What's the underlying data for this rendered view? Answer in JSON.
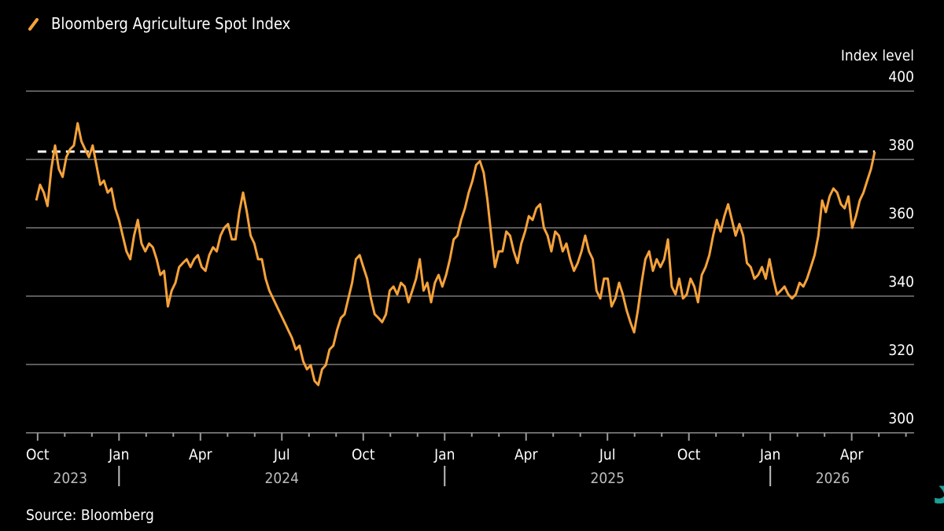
{
  "chart_data": {
    "type": "line",
    "title": "Bloomberg Agriculture Spot Index",
    "ylabel": "Index level",
    "xlabel": "",
    "source": "Source: Bloomberg",
    "ylim": [
      300,
      400
    ],
    "yticks": [
      400,
      380,
      360,
      340,
      320,
      300
    ],
    "x_unit": "months since Oct 2023",
    "xlim": [
      -0.43,
      32.3
    ],
    "xticks": [
      {
        "m": 0,
        "label": "Oct"
      },
      {
        "m": 3,
        "label": "Jan"
      },
      {
        "m": 6,
        "label": "Apr"
      },
      {
        "m": 9,
        "label": "Jul"
      },
      {
        "m": 12,
        "label": "Oct"
      },
      {
        "m": 15,
        "label": "Jan"
      },
      {
        "m": 18,
        "label": "Apr"
      },
      {
        "m": 21,
        "label": "Jul"
      },
      {
        "m": 24,
        "label": "Oct"
      },
      {
        "m": 27,
        "label": "Jan"
      },
      {
        "m": 30,
        "label": "Apr"
      }
    ],
    "year_labels": [
      {
        "m": 1.2,
        "label": "2023"
      },
      {
        "m": 9,
        "label": "2024"
      },
      {
        "m": 21,
        "label": "2025"
      },
      {
        "m": 29.3,
        "label": "2026"
      }
    ],
    "year_separators": [
      3,
      15,
      27
    ],
    "reference_line": {
      "value": 382.3,
      "style": "dashed"
    },
    "series": [
      {
        "name": "Bloomberg Agriculture Spot Index",
        "color": "#f5a23a",
        "x_start": -0.05,
        "x_end": 30.85,
        "values": [
          368.0,
          372.6,
          370.3,
          366.4,
          377.2,
          384.1,
          377.2,
          374.9,
          380.7,
          383.0,
          384.1,
          390.6,
          385.3,
          383.0,
          380.7,
          384.1,
          378.4,
          372.6,
          373.8,
          370.3,
          371.5,
          365.7,
          362.3,
          357.7,
          353.1,
          350.8,
          357.7,
          362.3,
          355.4,
          353.1,
          355.4,
          354.3,
          350.8,
          346.2,
          347.4,
          337.0,
          341.6,
          343.9,
          348.5,
          349.7,
          350.8,
          348.5,
          350.8,
          352.0,
          348.5,
          347.4,
          352.0,
          354.3,
          353.1,
          357.7,
          360.0,
          361.1,
          356.6,
          356.6,
          364.6,
          370.3,
          364.6,
          357.7,
          355.4,
          350.8,
          350.8,
          345.1,
          341.6,
          339.3,
          337.0,
          334.7,
          332.4,
          330.1,
          327.8,
          324.4,
          325.5,
          320.9,
          318.6,
          319.8,
          315.2,
          314.0,
          318.6,
          319.8,
          324.4,
          325.5,
          330.1,
          333.6,
          334.7,
          339.3,
          343.9,
          350.8,
          352.0,
          348.5,
          345.1,
          339.3,
          334.7,
          333.6,
          332.4,
          334.7,
          341.6,
          342.8,
          340.5,
          343.9,
          342.8,
          338.2,
          341.6,
          345.1,
          350.8,
          341.6,
          343.9,
          338.2,
          343.9,
          346.2,
          342.8,
          346.2,
          350.8,
          356.6,
          357.7,
          362.3,
          365.7,
          370.3,
          373.8,
          378.4,
          379.5,
          376.1,
          368.0,
          357.7,
          348.5,
          353.1,
          353.1,
          358.9,
          357.7,
          353.1,
          349.7,
          355.4,
          358.9,
          363.4,
          362.3,
          365.7,
          366.9,
          360.0,
          357.7,
          353.1,
          358.9,
          357.7,
          353.1,
          355.4,
          350.8,
          347.4,
          349.7,
          353.1,
          357.7,
          353.1,
          350.8,
          341.6,
          339.3,
          345.1,
          345.1,
          337.0,
          339.3,
          343.9,
          340.5,
          335.9,
          332.4,
          329.4,
          335.9,
          343.9,
          350.8,
          353.1,
          347.4,
          350.8,
          348.5,
          350.8,
          356.6,
          342.8,
          340.5,
          345.1,
          339.3,
          340.5,
          345.1,
          342.8,
          338.2,
          346.2,
          348.5,
          352.0,
          357.7,
          362.3,
          358.9,
          363.4,
          366.9,
          362.3,
          357.7,
          361.1,
          357.7,
          349.7,
          348.5,
          345.1,
          346.2,
          348.5,
          345.1,
          350.8,
          345.1,
          340.5,
          341.6,
          342.8,
          340.5,
          339.3,
          340.5,
          343.9,
          342.8,
          345.1,
          348.5,
          352.0,
          357.7,
          368.0,
          364.6,
          369.2,
          371.5,
          370.3,
          366.9,
          365.7,
          369.2,
          360.0,
          363.4,
          368.0,
          370.3,
          373.8,
          377.2,
          382.3
        ]
      }
    ]
  },
  "colors": {
    "background": "#000000",
    "line": "#f5a23a",
    "grid": "#5a5a5a",
    "text": "#ffffff",
    "year_text": "#bdbdbd",
    "watermark": "#1fa7a0"
  },
  "legend_icon": "orange-slash-icon",
  "watermark": {
    "text": "صفحه اقتصاد"
  }
}
